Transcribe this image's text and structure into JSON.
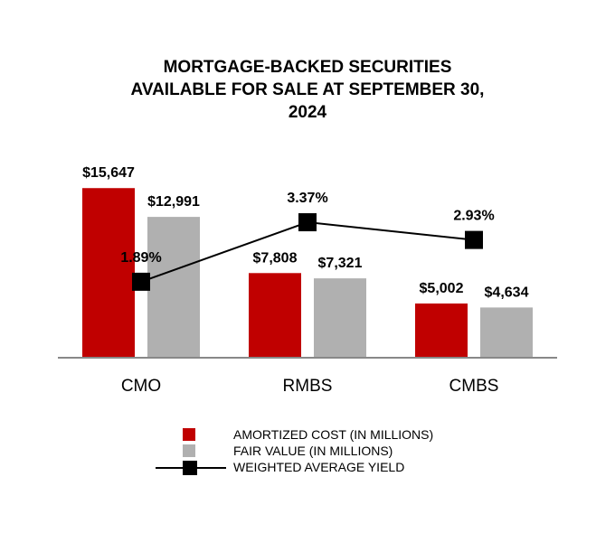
{
  "chart_data": {
    "type": "bar",
    "title_lines": [
      "MORTGAGE-BACKED SECURITIES",
      "AVAILABLE FOR SALE AT SEPTEMBER 30,",
      "2024"
    ],
    "categories": [
      "CMO",
      "RMBS",
      "CMBS"
    ],
    "series": [
      {
        "name": "AMORTIZED COST (IN MILLIONS)",
        "type": "bar",
        "color": "#c00000",
        "values": [
          15647,
          7808,
          5002
        ],
        "labels": [
          "$15,647",
          "$7,808",
          "$5,002"
        ]
      },
      {
        "name": "FAIR VALUE (IN MILLIONS)",
        "type": "bar",
        "color": "#b0b0b0",
        "values": [
          12991,
          7321,
          4634
        ],
        "labels": [
          "$12,991",
          "$7,321",
          "$4,634"
        ]
      },
      {
        "name": "WEIGHTED AVERAGE YIELD",
        "type": "line",
        "color": "#000000",
        "values": [
          1.89,
          3.37,
          2.93
        ],
        "labels": [
          "1.89%",
          "3.37%",
          "2.93%"
        ]
      }
    ],
    "ylim": [
      0,
      16000
    ],
    "yield_range": [
      0,
      4.0
    ],
    "grid": false,
    "legend_position": "bottom-center"
  }
}
